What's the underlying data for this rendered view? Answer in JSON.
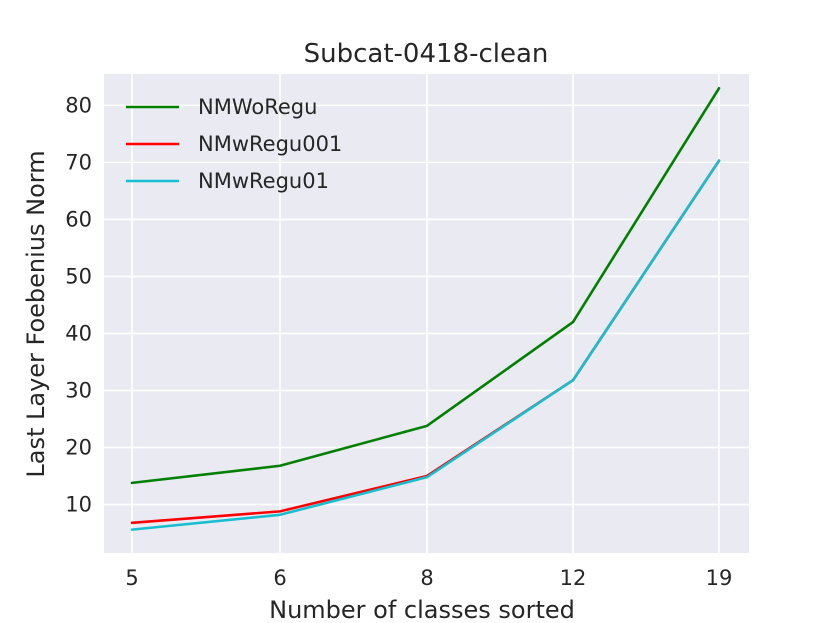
{
  "chart_data": {
    "type": "line",
    "title": "Subcat-0418-clean",
    "xlabel": "Number of classes sorted",
    "ylabel": "Last Layer Foebenius Norm",
    "categories": [
      "5",
      "6",
      "8",
      "12",
      "19"
    ],
    "yticks": [
      10,
      20,
      30,
      40,
      50,
      60,
      70,
      80
    ],
    "ylim": [
      1.5,
      85.5
    ],
    "grid": true,
    "legend_position": "top-left",
    "series": [
      {
        "name": "NMWoRegu",
        "color": "#008000",
        "values": [
          13.8,
          16.8,
          23.8,
          42.0,
          83.0
        ]
      },
      {
        "name": "NMwRegu001",
        "color": "#ff0000",
        "values": [
          6.8,
          8.8,
          15.0,
          31.8,
          70.3
        ]
      },
      {
        "name": "NMwRegu01",
        "color": "#17becf",
        "values": [
          5.6,
          8.2,
          14.8,
          31.8,
          70.3
        ]
      }
    ]
  }
}
